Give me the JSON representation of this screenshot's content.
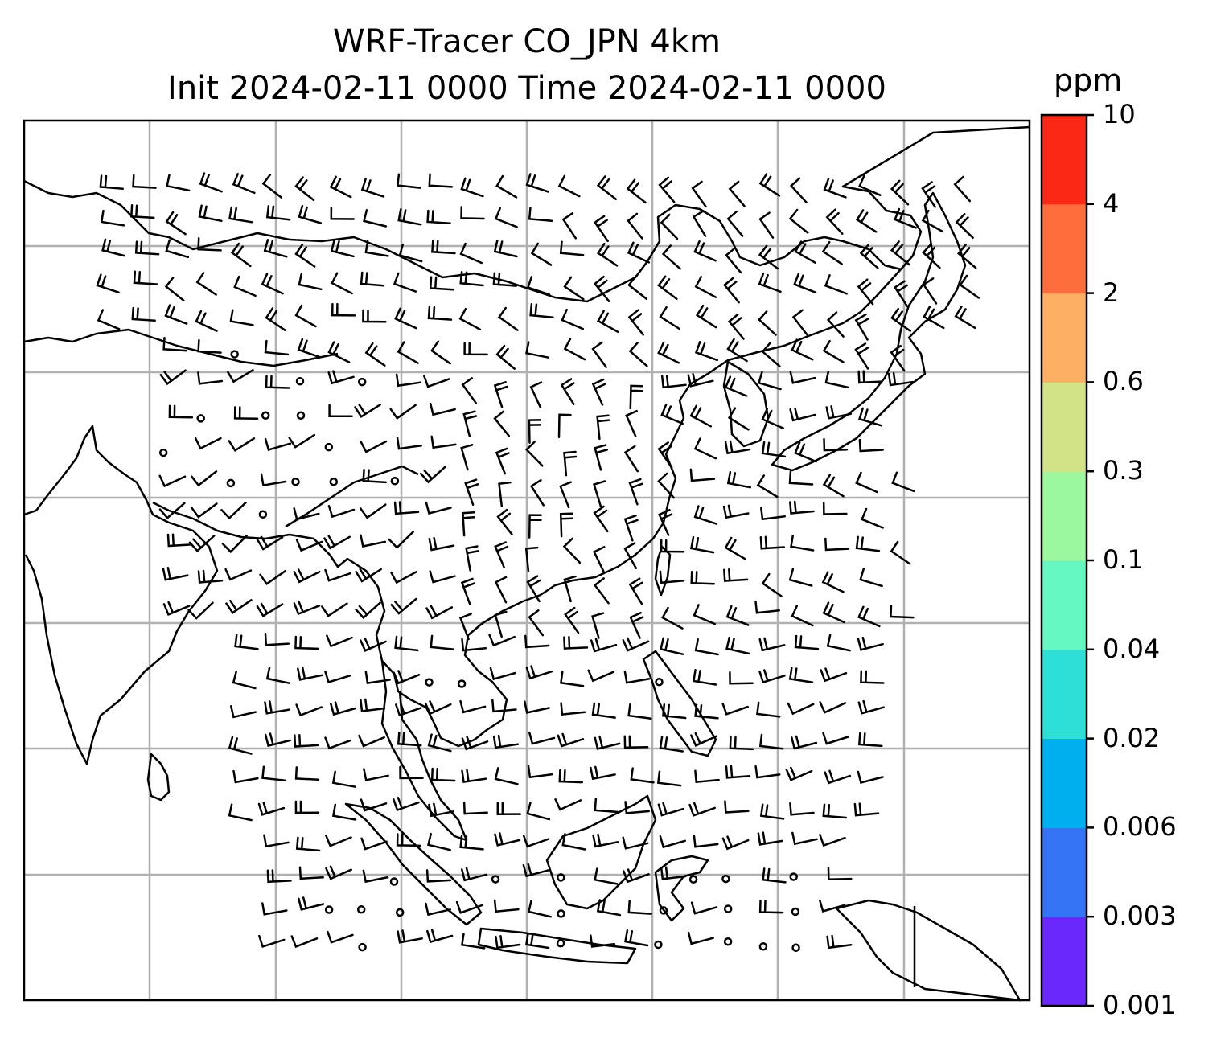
{
  "title": {
    "line1": "WRF-Tracer CO_JPN 4km",
    "line2": "Init 2024-02-11 0000 Time 2024-02-11 0000"
  },
  "colorbar": {
    "unit": "ppm",
    "ticks": [
      "0.001",
      "0.003",
      "0.006",
      "0.02",
      "0.04",
      "0.1",
      "0.3",
      "0.6",
      "2",
      "4",
      "10"
    ],
    "colors": [
      "#6a28fb",
      "#3574f4",
      "#00b0ee",
      "#2ddfd6",
      "#66f8c2",
      "#9bf89e",
      "#d2e287",
      "#fdb064",
      "#fe6d3c",
      "#fb2816"
    ]
  },
  "map": {
    "frame_color": "#000000",
    "grid_color": "#b0b0b0",
    "coastline_color": "#000000",
    "barb_color": "#000000"
  }
}
